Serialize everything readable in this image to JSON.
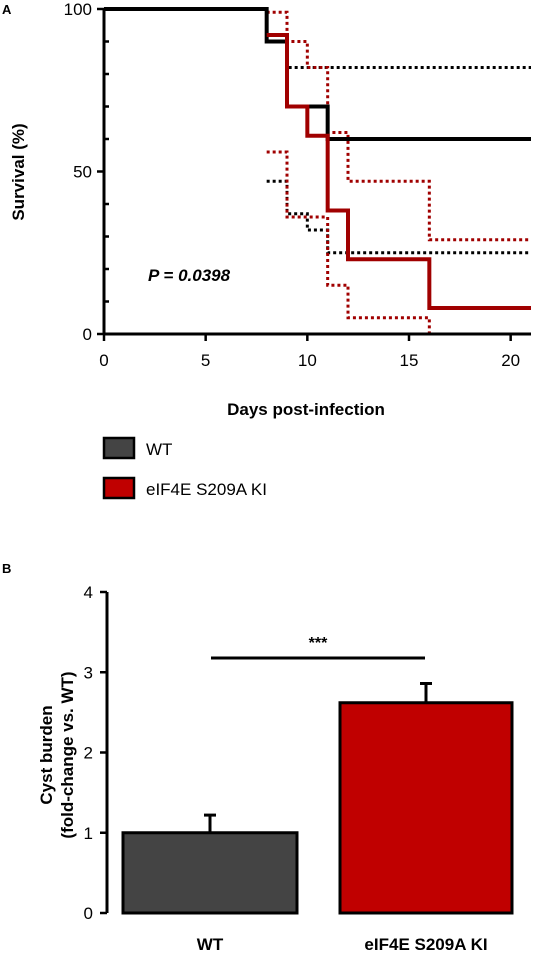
{
  "chart_data": [
    {
      "panel_label": "A",
      "type": "line",
      "xlabel": "Days post-infection",
      "ylabel": "Survival (%)",
      "xlim": [
        0,
        21
      ],
      "ylim": [
        0,
        100
      ],
      "xticks": [
        0,
        5,
        10,
        15,
        20
      ],
      "yticks": [
        0,
        50,
        100
      ],
      "step": true,
      "annotation": "P = 0.0398",
      "legend": {
        "placement": "below",
        "entries": [
          {
            "label": "WT",
            "color": "#444444"
          },
          {
            "label": "eIF4E S209A KI",
            "color": "#c00000"
          }
        ]
      },
      "series": [
        {
          "key": "wt",
          "role": "estimate",
          "color": "#000000",
          "x": [
            0,
            8,
            9,
            11,
            21
          ],
          "y": [
            100,
            90,
            70,
            60,
            60
          ]
        },
        {
          "key": "wt-ci-upper",
          "role": "ci",
          "color": "#000000",
          "x": [
            8,
            9,
            11,
            21
          ],
          "y": [
            90,
            82,
            82,
            82
          ]
        },
        {
          "key": "wt-ci-lower",
          "role": "ci",
          "color": "#000000",
          "x": [
            8,
            9,
            10,
            11,
            21
          ],
          "y": [
            47,
            37,
            32,
            25,
            25
          ]
        },
        {
          "key": "ki",
          "role": "estimate",
          "color": "#a00000",
          "x": [
            8,
            9,
            10,
            11,
            12,
            16,
            21
          ],
          "y": [
            92,
            70,
            61,
            38,
            23,
            8,
            8
          ]
        },
        {
          "key": "ki-ci-upper",
          "role": "ci",
          "color": "#a00000",
          "x": [
            8,
            9,
            10,
            11,
            12,
            16,
            21
          ],
          "y": [
            99,
            90,
            82,
            62,
            47,
            29,
            29
          ]
        },
        {
          "key": "ki-ci-lower",
          "role": "ci",
          "color": "#a00000",
          "x": [
            8,
            9,
            11,
            12,
            16,
            21
          ],
          "y": [
            56,
            36,
            15,
            5,
            0,
            0
          ]
        }
      ]
    },
    {
      "panel_label": "B",
      "type": "bar",
      "ylabel_lines": [
        "Cyst burden",
        "(fold-change vs. WT)"
      ],
      "ylim": [
        0,
        4
      ],
      "yticks": [
        0,
        1,
        2,
        3,
        4
      ],
      "categories": [
        "WT",
        "eIF4E S209A KI"
      ],
      "values": [
        1.0,
        2.62
      ],
      "errors": [
        0.22,
        0.24
      ],
      "colors": [
        "#444444",
        "#c00000"
      ],
      "significance": "***"
    }
  ]
}
